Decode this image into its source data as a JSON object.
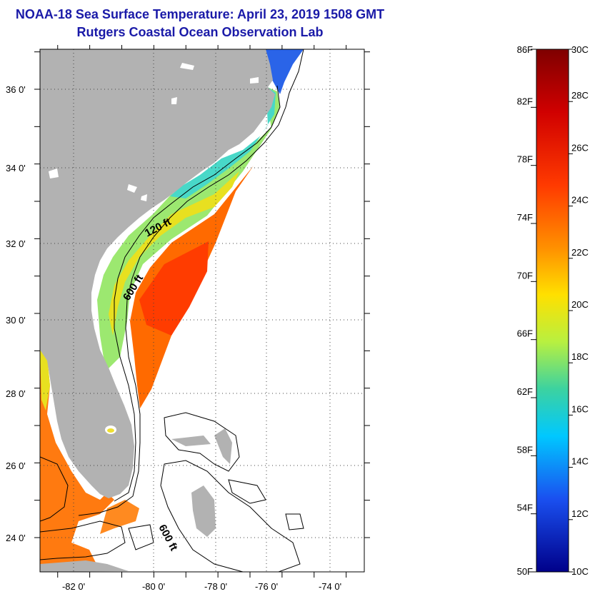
{
  "header": {
    "title_line1": "NOAA-18 Sea Surface Temperature:  April 23, 2019 1508 GMT",
    "title_line2": "Rutgers Coastal Ocean Observation Lab"
  },
  "map": {
    "lon_labels": [
      "-82 0'",
      "-80 0'",
      "-78 0'",
      "-76 0'",
      "-74 0'"
    ],
    "lat_labels": [
      "36 0'",
      "34 0'",
      "32 0'",
      "30 0'",
      "28 0'",
      "26 0'",
      "24 0'"
    ],
    "contour_labels": {
      "label_120ft": "120 ft",
      "label_600ft_north": "600 ft",
      "label_600ft_south": "600 ft"
    },
    "colors": {
      "land": "#b2b2b2",
      "frame": "#000000",
      "grid": "#333333"
    }
  },
  "colorbar": {
    "fahrenheit_labels": [
      "86F",
      "82F",
      "78F",
      "74F",
      "70F",
      "66F",
      "62F",
      "58F",
      "54F",
      "50F"
    ],
    "celsius_labels": [
      "30C",
      "28C",
      "26C",
      "24C",
      "22C",
      "20C",
      "18C",
      "16C",
      "14C",
      "12C",
      "10C"
    ],
    "min_c": 10,
    "max_c": 30,
    "min_f": 50,
    "max_f": 86
  }
}
